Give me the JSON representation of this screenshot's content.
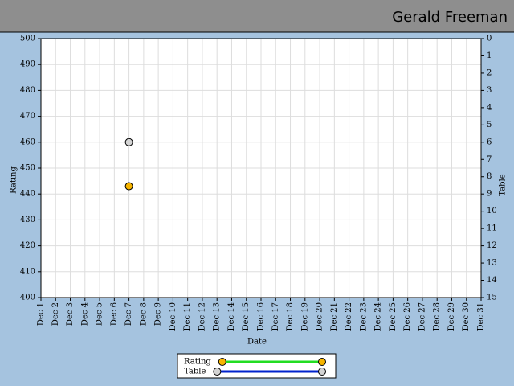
{
  "chart_data": {
    "type": "line",
    "title": "Gerald Freeman",
    "xlabel": "Date",
    "ylabel": "Rating",
    "y2label": "Table",
    "categories": [
      "Dec 1",
      "Dec 2",
      "Dec 3",
      "Dec 4",
      "Dec 5",
      "Dec 6",
      "Dec 7",
      "Dec 8",
      "Dec 9",
      "Dec 10",
      "Dec 11",
      "Dec 12",
      "Dec 13",
      "Dec 14",
      "Dec 15",
      "Dec 16",
      "Dec 17",
      "Dec 18",
      "Dec 19",
      "Dec 20",
      "Dec 21",
      "Dec 22",
      "Dec 23",
      "Dec 24",
      "Dec 25",
      "Dec 26",
      "Dec 27",
      "Dec 28",
      "Dec 29",
      "Dec 30",
      "Dec 31"
    ],
    "series": [
      {
        "name": "Rating",
        "color": "#f7b500",
        "line_color": "#22dd22",
        "values": [
          null,
          null,
          null,
          null,
          null,
          null,
          443,
          null,
          null,
          null,
          null,
          null,
          null,
          null,
          null,
          null,
          null,
          null,
          null,
          null,
          null,
          null,
          null,
          null,
          null,
          null,
          null,
          null,
          null,
          null,
          null
        ]
      },
      {
        "name": "Table",
        "color": "#d4d4d4",
        "line_color": "#0022cc",
        "axis": "y2",
        "values": [
          null,
          null,
          null,
          null,
          null,
          null,
          6,
          null,
          null,
          null,
          null,
          null,
          null,
          null,
          null,
          null,
          null,
          null,
          null,
          null,
          null,
          null,
          null,
          null,
          null,
          null,
          null,
          null,
          null,
          null,
          null
        ]
      }
    ],
    "ylim": [
      400,
      500
    ],
    "yticks": [
      400,
      410,
      420,
      430,
      440,
      450,
      460,
      470,
      480,
      490,
      500
    ],
    "y2lim": [
      15,
      0
    ],
    "y2ticks": [
      0,
      1,
      2,
      3,
      4,
      5,
      6,
      7,
      8,
      9,
      10,
      11,
      12,
      13,
      14,
      15
    ],
    "grid": true
  }
}
